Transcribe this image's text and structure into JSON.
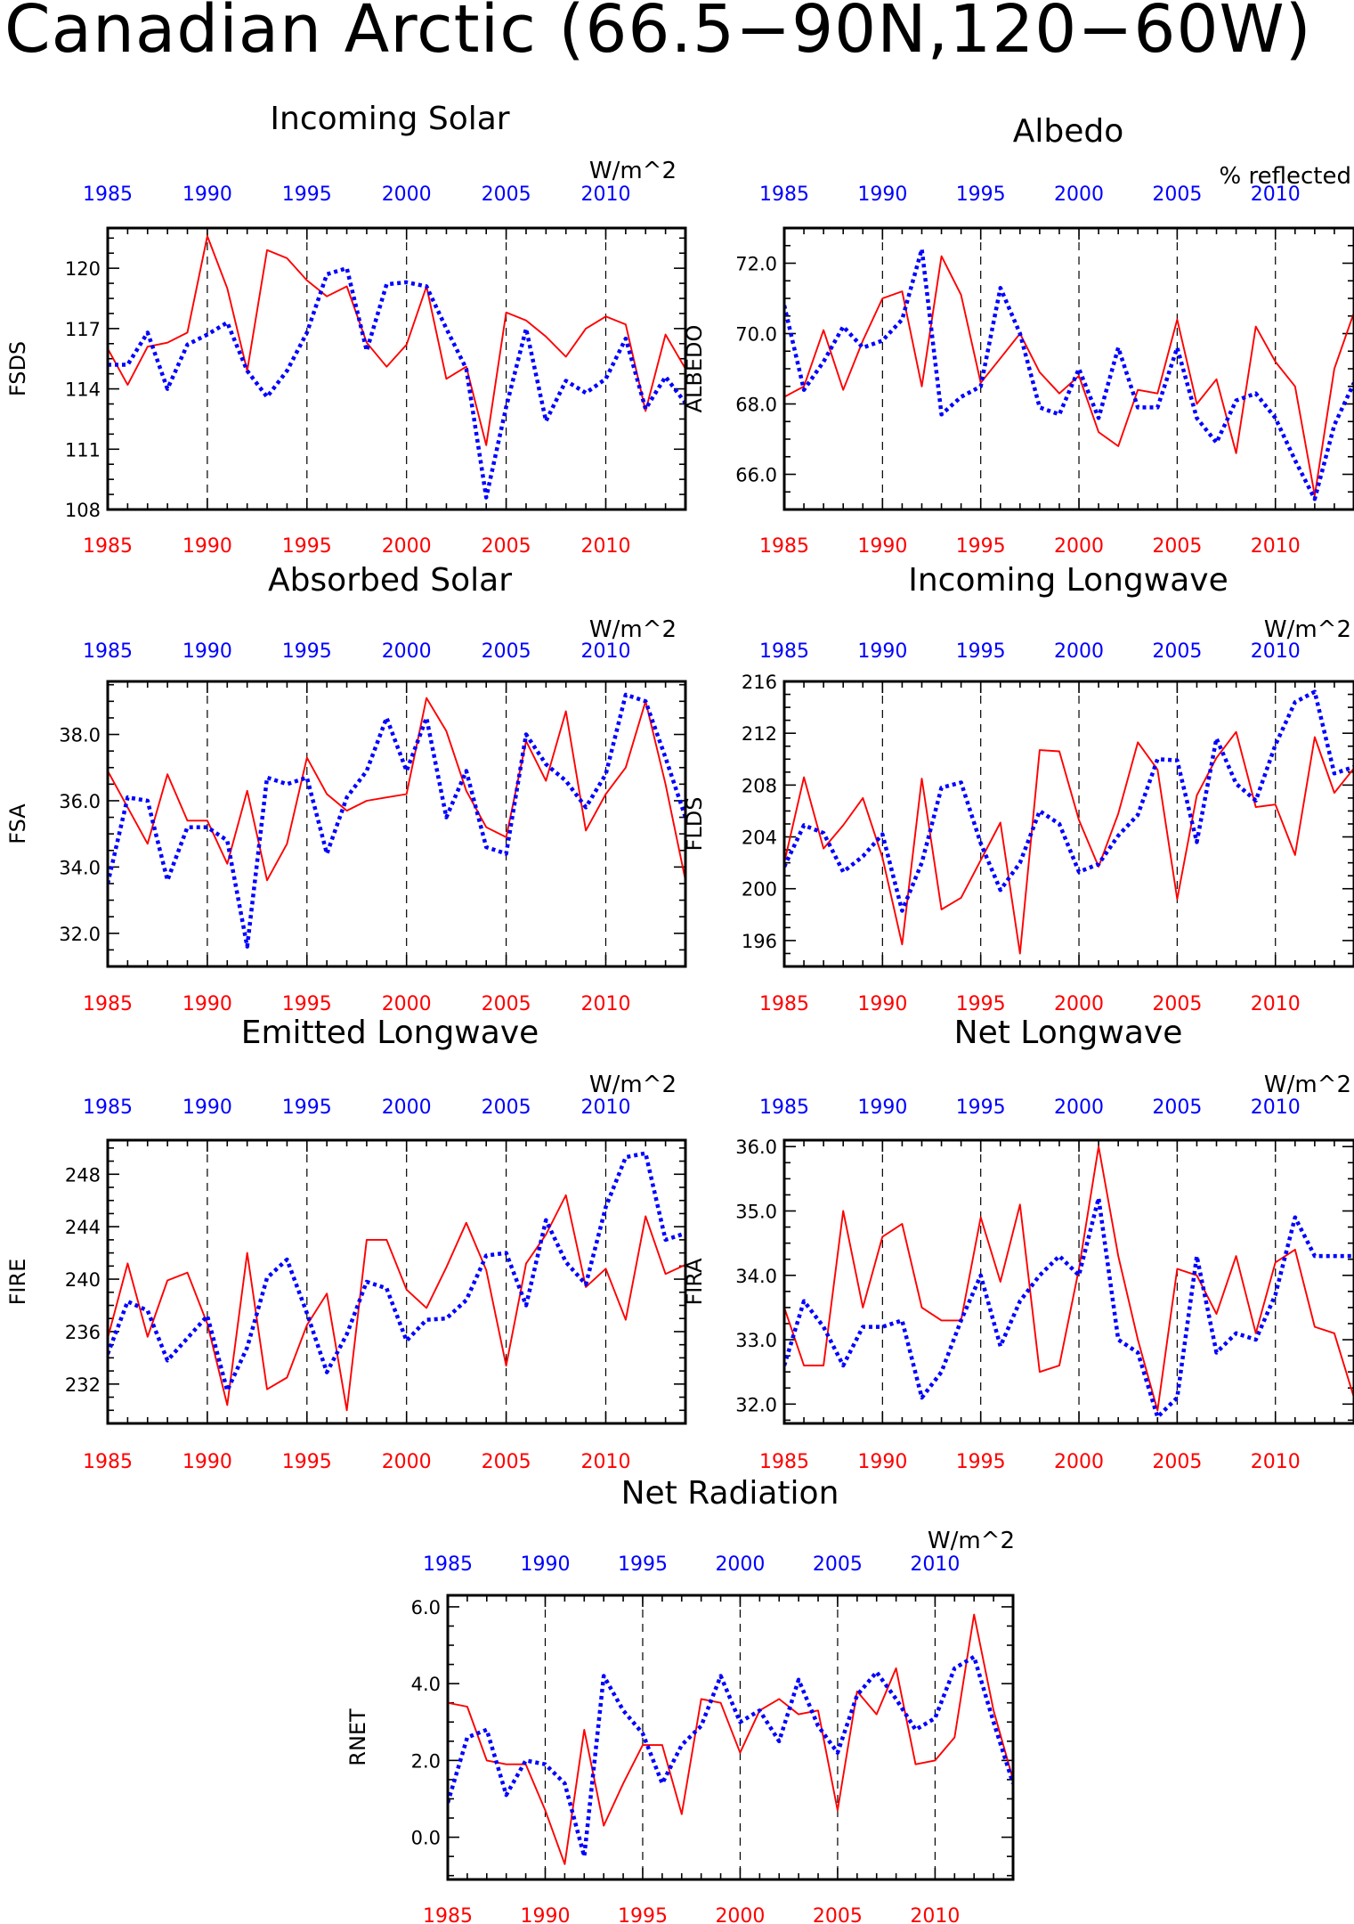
{
  "title": "Canadian Arctic (66.5−90N,120−60W)",
  "colors": {
    "red_series": "#ff0000",
    "blue_series": "#0000ff",
    "frame": "#000000"
  },
  "chart_data": [
    {
      "id": "fsds",
      "type": "line",
      "title": "Incoming Solar",
      "ylabel": "FSDS",
      "units": "W/m^2",
      "xlim": [
        1985,
        2014
      ],
      "ylim": [
        108,
        122
      ],
      "yticks": [
        "108",
        "111",
        "114",
        "117",
        "120"
      ],
      "ytick_values": [
        108,
        111,
        114,
        117,
        120
      ],
      "xticks": [
        "1985",
        "1990",
        "1995",
        "2000",
        "2005",
        "2010"
      ],
      "xtick_values": [
        1985,
        1990,
        1995,
        2000,
        2005,
        2010
      ],
      "x": [
        1985,
        1986,
        1987,
        1988,
        1989,
        1990,
        1991,
        1992,
        1993,
        1994,
        1995,
        1996,
        1997,
        1998,
        1999,
        2000,
        2001,
        2002,
        2003,
        2004,
        2005,
        2006,
        2007,
        2008,
        2009,
        2010,
        2011,
        2012,
        2013,
        2014
      ],
      "series": [
        {
          "style": "solid",
          "values": [
            116.0,
            114.2,
            116.1,
            116.3,
            116.8,
            121.6,
            119.0,
            114.9,
            120.9,
            120.5,
            119.4,
            118.6,
            119.1,
            116.3,
            115.1,
            116.2,
            119.1,
            114.5,
            115.1,
            111.2,
            117.8,
            117.4,
            116.6,
            115.6,
            117.0,
            117.6,
            117.2,
            112.9,
            116.7,
            115.0
          ]
        },
        {
          "style": "dotted",
          "values": [
            115.2,
            115.2,
            116.8,
            114.0,
            116.2,
            116.7,
            117.3,
            114.9,
            113.6,
            114.9,
            116.8,
            119.7,
            120.0,
            115.9,
            119.2,
            119.3,
            119.1,
            117.0,
            115.0,
            108.6,
            113.1,
            117.0,
            112.4,
            114.4,
            113.8,
            114.5,
            116.5,
            113.0,
            114.6,
            113.3
          ]
        }
      ]
    },
    {
      "id": "albedo",
      "type": "line",
      "title": "Albedo",
      "ylabel": "ALBEDO",
      "units": "% reflected",
      "xlim": [
        1985,
        2014
      ],
      "ylim": [
        65,
        73
      ],
      "yticks": [
        "66.0",
        "68.0",
        "70.0",
        "72.0"
      ],
      "ytick_values": [
        66,
        68,
        70,
        72
      ],
      "xticks": [
        "1985",
        "1990",
        "1995",
        "2000",
        "2005",
        "2010"
      ],
      "xtick_values": [
        1985,
        1990,
        1995,
        2000,
        2005,
        2010
      ],
      "x": [
        1985,
        1986,
        1987,
        1988,
        1989,
        1990,
        1991,
        1992,
        1993,
        1994,
        1995,
        1996,
        1997,
        1998,
        1999,
        2000,
        2001,
        2002,
        2003,
        2004,
        2005,
        2006,
        2007,
        2008,
        2009,
        2010,
        2011,
        2012,
        2013,
        2014
      ],
      "series": [
        {
          "style": "solid",
          "values": [
            68.2,
            68.5,
            70.1,
            68.4,
            69.8,
            71.0,
            71.2,
            68.5,
            72.2,
            71.1,
            68.6,
            69.3,
            70.0,
            68.9,
            68.3,
            68.8,
            67.2,
            66.8,
            68.4,
            68.3,
            70.4,
            68.0,
            68.7,
            66.6,
            70.2,
            69.2,
            68.5,
            65.4,
            69.0,
            70.6
          ]
        },
        {
          "style": "dotted",
          "values": [
            70.8,
            68.4,
            69.2,
            70.2,
            69.6,
            69.8,
            70.4,
            72.4,
            67.7,
            68.2,
            68.5,
            71.3,
            70.0,
            67.9,
            67.7,
            69.0,
            67.6,
            69.6,
            67.9,
            67.9,
            69.6,
            67.6,
            66.9,
            68.1,
            68.3,
            67.6,
            66.4,
            65.3,
            67.4,
            68.6
          ]
        }
      ]
    },
    {
      "id": "fsa",
      "type": "line",
      "title": "Absorbed Solar",
      "ylabel": "FSA",
      "units": "W/m^2",
      "xlim": [
        1985,
        2014
      ],
      "ylim": [
        31,
        39.6
      ],
      "yticks": [
        "32.0",
        "34.0",
        "36.0",
        "38.0"
      ],
      "ytick_values": [
        32,
        34,
        36,
        38
      ],
      "xticks": [
        "1985",
        "1990",
        "1995",
        "2000",
        "2005",
        "2010"
      ],
      "xtick_values": [
        1985,
        1990,
        1995,
        2000,
        2005,
        2010
      ],
      "x": [
        1985,
        1986,
        1987,
        1988,
        1989,
        1990,
        1991,
        1992,
        1993,
        1994,
        1995,
        1996,
        1997,
        1998,
        1999,
        2000,
        2001,
        2002,
        2003,
        2004,
        2005,
        2006,
        2007,
        2008,
        2009,
        2010,
        2011,
        2012,
        2013,
        2014
      ],
      "series": [
        {
          "style": "solid",
          "values": [
            36.9,
            35.8,
            34.7,
            36.8,
            35.4,
            35.4,
            34.1,
            36.3,
            33.6,
            34.7,
            37.3,
            36.2,
            35.7,
            36.0,
            36.1,
            36.2,
            39.1,
            38.1,
            36.3,
            35.2,
            34.9,
            37.8,
            36.6,
            38.7,
            35.1,
            36.2,
            37.0,
            39.0,
            36.5,
            33.6
          ]
        },
        {
          "style": "dotted",
          "values": [
            33.5,
            36.1,
            36.0,
            33.6,
            35.2,
            35.2,
            34.8,
            31.6,
            36.7,
            36.5,
            36.7,
            34.4,
            36.1,
            36.9,
            38.5,
            36.9,
            38.5,
            35.5,
            36.9,
            34.6,
            34.4,
            38.0,
            37.1,
            36.6,
            35.8,
            36.8,
            39.2,
            39.0,
            37.3,
            35.5
          ]
        }
      ]
    },
    {
      "id": "flds",
      "type": "line",
      "title": "Incoming Longwave",
      "ylabel": "FLDS",
      "units": "W/m^2",
      "xlim": [
        1985,
        2014
      ],
      "ylim": [
        194,
        216
      ],
      "yticks": [
        "196",
        "200",
        "204",
        "208",
        "212",
        "216"
      ],
      "ytick_values": [
        196,
        200,
        204,
        208,
        212,
        216
      ],
      "xticks": [
        "1985",
        "1990",
        "1995",
        "2000",
        "2005",
        "2010"
      ],
      "xtick_values": [
        1985,
        1990,
        1995,
        2000,
        2005,
        2010
      ],
      "x": [
        1985,
        1986,
        1987,
        1988,
        1989,
        1990,
        1991,
        1992,
        1993,
        1994,
        1995,
        1996,
        1997,
        1998,
        1999,
        2000,
        2001,
        2002,
        2003,
        2004,
        2005,
        2006,
        2007,
        2008,
        2009,
        2010,
        2011,
        2012,
        2013,
        2014
      ],
      "series": [
        {
          "style": "solid",
          "values": [
            202.0,
            208.6,
            203.1,
            204.9,
            207.0,
            202.4,
            195.7,
            208.5,
            198.4,
            199.3,
            202.2,
            205.1,
            195.0,
            210.7,
            210.6,
            205.3,
            201.7,
            205.8,
            211.3,
            209.2,
            199.2,
            207.2,
            210.1,
            212.1,
            206.3,
            206.5,
            202.6,
            211.7,
            207.4,
            209.3
          ]
        },
        {
          "style": "dotted",
          "values": [
            201.7,
            204.9,
            204.3,
            201.3,
            202.5,
            204.2,
            198.3,
            202.0,
            207.8,
            208.2,
            203.5,
            199.9,
            202.0,
            206.0,
            205.0,
            201.3,
            201.9,
            204.1,
            205.7,
            210.0,
            209.9,
            203.6,
            211.6,
            208.1,
            206.8,
            211.1,
            214.4,
            215.2,
            208.9,
            209.4
          ]
        }
      ]
    },
    {
      "id": "fire",
      "type": "line",
      "title": "Emitted Longwave",
      "ylabel": "FIRE",
      "units": "W/m^2",
      "xlim": [
        1985,
        2014
      ],
      "ylim": [
        229,
        250.6
      ],
      "yticks": [
        "232",
        "236",
        "240",
        "244",
        "248"
      ],
      "ytick_values": [
        232,
        236,
        240,
        244,
        248
      ],
      "xticks": [
        "1985",
        "1990",
        "1995",
        "2000",
        "2005",
        "2010"
      ],
      "xtick_values": [
        1985,
        1990,
        1995,
        2000,
        2005,
        2010
      ],
      "x": [
        1985,
        1986,
        1987,
        1988,
        1989,
        1990,
        1991,
        1992,
        1993,
        1994,
        1995,
        1996,
        1997,
        1998,
        1999,
        2000,
        2001,
        2002,
        2003,
        2004,
        2005,
        2006,
        2007,
        2008,
        2009,
        2010,
        2011,
        2012,
        2013,
        2014
      ],
      "series": [
        {
          "style": "solid",
          "values": [
            235.5,
            241.2,
            235.6,
            239.9,
            240.5,
            236.6,
            230.4,
            242.0,
            231.6,
            232.5,
            236.5,
            238.9,
            230.0,
            243.0,
            243.0,
            239.2,
            237.8,
            240.9,
            244.3,
            240.7,
            233.4,
            241.2,
            243.4,
            246.4,
            239.4,
            240.8,
            236.9,
            244.8,
            240.4,
            241.1
          ]
        },
        {
          "style": "dotted",
          "values": [
            234.3,
            238.3,
            237.6,
            233.8,
            235.5,
            237.2,
            231.5,
            234.8,
            240.1,
            241.5,
            237.4,
            232.9,
            235.8,
            239.8,
            239.3,
            235.3,
            236.9,
            237.0,
            238.4,
            241.8,
            242.0,
            238.0,
            244.5,
            241.3,
            239.6,
            245.5,
            249.3,
            249.6,
            243.0,
            243.5
          ]
        }
      ]
    },
    {
      "id": "fira",
      "type": "line",
      "title": "Net Longwave",
      "ylabel": "FIRA",
      "units": "W/m^2",
      "xlim": [
        1985,
        2014
      ],
      "ylim": [
        31.7,
        36.1
      ],
      "yticks": [
        "32.0",
        "33.0",
        "34.0",
        "35.0",
        "36.0"
      ],
      "ytick_values": [
        32,
        33,
        34,
        35,
        36
      ],
      "xticks": [
        "1985",
        "1990",
        "1995",
        "2000",
        "2005",
        "2010"
      ],
      "xtick_values": [
        1985,
        1990,
        1995,
        2000,
        2005,
        2010
      ],
      "x": [
        1985,
        1986,
        1987,
        1988,
        1989,
        1990,
        1991,
        1992,
        1993,
        1994,
        1995,
        1996,
        1997,
        1998,
        1999,
        2000,
        2001,
        2002,
        2003,
        2004,
        2005,
        2006,
        2007,
        2008,
        2009,
        2010,
        2011,
        2012,
        2013,
        2014
      ],
      "series": [
        {
          "style": "solid",
          "values": [
            33.5,
            32.6,
            32.6,
            35.0,
            33.5,
            34.6,
            34.8,
            33.5,
            33.3,
            33.3,
            34.9,
            33.9,
            35.1,
            32.5,
            32.6,
            34.1,
            36.0,
            34.3,
            33.0,
            31.9,
            34.1,
            34.0,
            33.4,
            34.3,
            33.1,
            34.2,
            34.4,
            33.2,
            33.1,
            32.1
          ]
        },
        {
          "style": "dotted",
          "values": [
            32.6,
            33.6,
            33.2,
            32.6,
            33.2,
            33.2,
            33.3,
            32.1,
            32.5,
            33.3,
            34.0,
            32.9,
            33.6,
            34.0,
            34.3,
            34.0,
            35.2,
            33.0,
            32.8,
            31.8,
            32.1,
            34.3,
            32.8,
            33.1,
            33.0,
            33.7,
            34.9,
            34.3,
            34.3,
            34.3
          ]
        }
      ]
    },
    {
      "id": "rnet",
      "type": "line",
      "title": "Net Radiation",
      "ylabel": "RNET",
      "units": "W/m^2",
      "xlim": [
        1985,
        2014
      ],
      "ylim": [
        -1.1,
        6.3
      ],
      "yticks": [
        "0.0",
        "2.0",
        "4.0",
        "6.0"
      ],
      "ytick_values": [
        0,
        2,
        4,
        6
      ],
      "xticks": [
        "1985",
        "1990",
        "1995",
        "2000",
        "2005",
        "2010"
      ],
      "xtick_values": [
        1985,
        1990,
        1995,
        2000,
        2005,
        2010
      ],
      "x": [
        1985,
        1986,
        1987,
        1988,
        1989,
        1990,
        1991,
        1992,
        1993,
        1994,
        1995,
        1996,
        1997,
        1998,
        1999,
        2000,
        2001,
        2002,
        2003,
        2004,
        2005,
        2006,
        2007,
        2008,
        2009,
        2010,
        2011,
        2012,
        2013,
        2014
      ],
      "series": [
        {
          "style": "solid",
          "values": [
            3.5,
            3.4,
            2.0,
            1.9,
            1.9,
            0.7,
            -0.7,
            2.8,
            0.3,
            1.4,
            2.4,
            2.4,
            0.6,
            3.6,
            3.5,
            2.2,
            3.3,
            3.6,
            3.2,
            3.3,
            0.7,
            3.8,
            3.2,
            4.4,
            1.9,
            2.0,
            2.6,
            5.8,
            3.3,
            1.5
          ]
        },
        {
          "style": "dotted",
          "values": [
            0.9,
            2.6,
            2.8,
            1.1,
            2.0,
            1.9,
            1.4,
            -0.5,
            4.2,
            3.3,
            2.7,
            1.4,
            2.4,
            2.9,
            4.2,
            3.0,
            3.3,
            2.5,
            4.1,
            2.9,
            2.2,
            3.7,
            4.3,
            3.6,
            2.8,
            3.1,
            4.4,
            4.7,
            3.0,
            1.4
          ]
        }
      ]
    }
  ]
}
